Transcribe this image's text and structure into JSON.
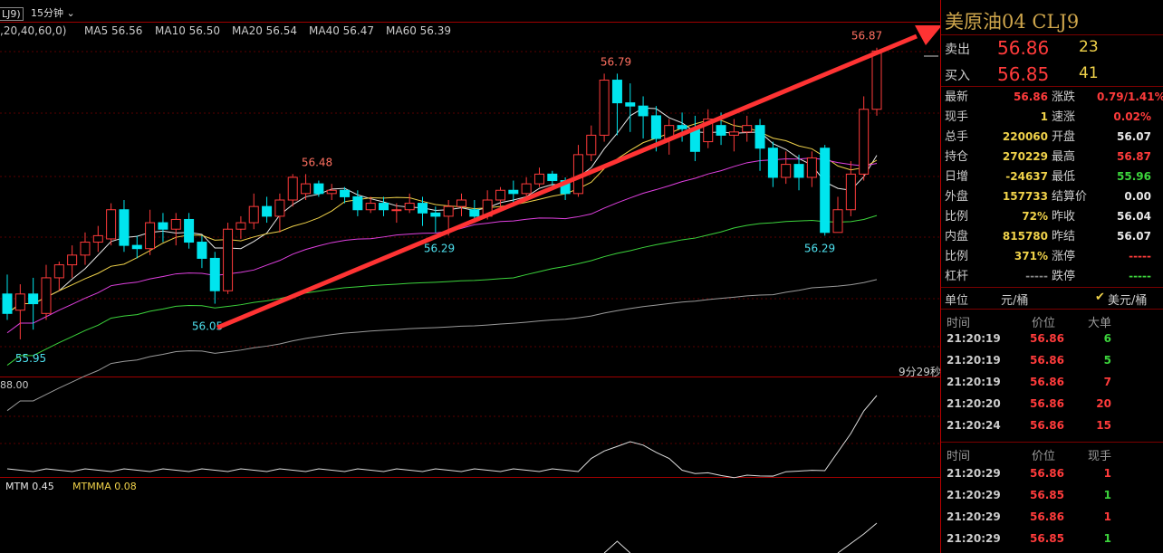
{
  "header": {
    "symbol_short": "LJ9)",
    "period": "15分钟",
    "ma_params": ",20,40,60,0)",
    "ma": [
      {
        "label": "MA5 56.56",
        "color": "#e8e8e8"
      },
      {
        "label": "MA10 56.50",
        "color": "#f0d24a"
      },
      {
        "label": "MA20 56.54",
        "color": "#e040e0"
      },
      {
        "label": "MA40 56.47",
        "color": "#3cd43c"
      },
      {
        "label": "MA60 56.39",
        "color": "#9a9a9a"
      }
    ]
  },
  "annotations": {
    "countdown": "9分29秒",
    "osc_top": "88.00",
    "mtm_label": "MTM 0.45",
    "mtmma_label": "MTMMA 0.08"
  },
  "chart_data": {
    "type": "candlestick",
    "ylim": [
      55.9,
      56.9
    ],
    "price_labels": [
      {
        "text": "56.87",
        "value": 56.87
      },
      {
        "text": "56.79",
        "value": 56.79
      },
      {
        "text": "56.48",
        "value": 56.48
      },
      {
        "text": "56.29",
        "value": 56.29
      },
      {
        "text": "56.05",
        "value": 56.05
      },
      {
        "text": "55.95",
        "value": 55.95
      },
      {
        "text": "56.29",
        "value": 56.29
      }
    ],
    "candles": [
      [
        56.11,
        56.05,
        56.17,
        56.03
      ],
      [
        56.06,
        56.11,
        56.14,
        55.97
      ],
      [
        56.11,
        56.08,
        56.16,
        56.0
      ],
      [
        56.05,
        56.16,
        56.2,
        56.03
      ],
      [
        56.16,
        56.2,
        56.21,
        56.12
      ],
      [
        56.2,
        56.23,
        56.26,
        56.16
      ],
      [
        56.23,
        56.27,
        56.3,
        56.2
      ],
      [
        56.27,
        56.29,
        56.32,
        56.24
      ],
      [
        56.28,
        56.37,
        56.39,
        56.26
      ],
      [
        56.37,
        56.26,
        56.4,
        56.24
      ],
      [
        56.26,
        56.25,
        56.29,
        56.22
      ],
      [
        56.25,
        56.33,
        56.37,
        56.23
      ],
      [
        56.33,
        56.31,
        56.36,
        56.27
      ],
      [
        56.31,
        56.34,
        56.36,
        56.26
      ],
      [
        56.34,
        56.27,
        56.36,
        56.25
      ],
      [
        56.27,
        56.22,
        56.29,
        56.19
      ],
      [
        56.22,
        56.12,
        56.24,
        56.08
      ],
      [
        56.12,
        56.31,
        56.33,
        56.11
      ],
      [
        56.31,
        56.33,
        56.35,
        56.28
      ],
      [
        56.33,
        56.38,
        56.42,
        56.31
      ],
      [
        56.38,
        56.35,
        56.41,
        56.33
      ],
      [
        56.35,
        56.4,
        56.42,
        56.3
      ],
      [
        56.4,
        56.47,
        56.48,
        56.38
      ],
      [
        56.42,
        56.45,
        56.48,
        56.4
      ],
      [
        56.45,
        56.42,
        56.46,
        56.41
      ],
      [
        56.42,
        56.43,
        56.45,
        56.4
      ],
      [
        56.43,
        56.41,
        56.44,
        56.39
      ],
      [
        56.41,
        56.37,
        56.43,
        56.35
      ],
      [
        56.37,
        56.39,
        56.41,
        56.36
      ],
      [
        56.39,
        56.37,
        56.41,
        56.35
      ],
      [
        56.37,
        56.37,
        56.39,
        56.33
      ],
      [
        56.37,
        56.39,
        56.42,
        56.36
      ],
      [
        56.39,
        56.36,
        56.41,
        56.32
      ],
      [
        56.36,
        56.35,
        56.38,
        56.3
      ],
      [
        56.35,
        56.38,
        56.4,
        56.29
      ],
      [
        56.38,
        56.4,
        56.42,
        56.35
      ],
      [
        56.37,
        56.35,
        56.4,
        56.33
      ],
      [
        56.35,
        56.4,
        56.43,
        56.34
      ],
      [
        56.4,
        56.43,
        56.44,
        56.37
      ],
      [
        56.43,
        56.42,
        56.46,
        56.38
      ],
      [
        56.42,
        56.45,
        56.47,
        56.4
      ],
      [
        56.45,
        56.48,
        56.5,
        56.44
      ],
      [
        56.48,
        56.46,
        56.49,
        56.43
      ],
      [
        56.46,
        56.42,
        56.47,
        56.4
      ],
      [
        56.42,
        56.54,
        56.57,
        56.41
      ],
      [
        56.54,
        56.6,
        56.63,
        56.52
      ],
      [
        56.6,
        56.77,
        56.79,
        56.58
      ],
      [
        56.77,
        56.7,
        56.79,
        56.6
      ],
      [
        56.7,
        56.69,
        56.76,
        56.61
      ],
      [
        56.69,
        56.66,
        56.72,
        56.59
      ],
      [
        56.66,
        56.59,
        56.69,
        56.55
      ],
      [
        56.59,
        56.63,
        56.65,
        56.54
      ],
      [
        56.63,
        56.62,
        56.67,
        56.58
      ],
      [
        56.62,
        56.55,
        56.66,
        56.52
      ],
      [
        56.58,
        56.65,
        56.68,
        56.56
      ],
      [
        56.63,
        56.6,
        56.67,
        56.57
      ],
      [
        56.6,
        56.61,
        56.65,
        56.55
      ],
      [
        56.61,
        56.63,
        56.66,
        56.58
      ],
      [
        56.63,
        56.56,
        56.65,
        56.49
      ],
      [
        56.56,
        56.47,
        56.58,
        56.44
      ],
      [
        56.47,
        56.51,
        56.55,
        56.45
      ],
      [
        56.51,
        56.47,
        56.54,
        56.43
      ],
      [
        56.47,
        56.53,
        56.55,
        56.44
      ],
      [
        56.56,
        56.3,
        56.57,
        56.29
      ],
      [
        56.3,
        56.37,
        56.41,
        56.31
      ],
      [
        56.37,
        56.48,
        56.52,
        56.35
      ],
      [
        56.48,
        56.68,
        56.72,
        56.46
      ],
      [
        56.68,
        56.86,
        56.87,
        56.66
      ]
    ],
    "mtm_pattern": "oscillating"
  },
  "right_panel": {
    "title": "美原油04 CLJ9",
    "sell_label": "卖出",
    "sell_price": "56.86",
    "sell_vol": "23",
    "buy_label": "买入",
    "buy_price": "56.85",
    "buy_vol": "41",
    "stats": [
      {
        "l1": "最新",
        "v1": "56.86",
        "c1": "#ff3b3b",
        "l2": "涨跌",
        "v2": "0.79/1.41%",
        "c2": "#ff3b3b"
      },
      {
        "l1": "现手",
        "v1": "1",
        "c1": "#f0d24a",
        "l2": "速涨",
        "v2": "0.02%",
        "c2": "#ff3b3b"
      },
      {
        "l1": "总手",
        "v1": "220060",
        "c1": "#f0d24a",
        "l2": "开盘",
        "v2": "56.07",
        "c2": "#e8e8e8"
      },
      {
        "l1": "持仓",
        "v1": "270229",
        "c1": "#f0d24a",
        "l2": "最高",
        "v2": "56.87",
        "c2": "#ff3b3b"
      },
      {
        "l1": "日增",
        "v1": "-24637",
        "c1": "#f0d24a",
        "l2": "最低",
        "v2": "55.96",
        "c2": "#3cd43c"
      },
      {
        "l1": "外盘",
        "v1": "157733",
        "c1": "#f0d24a",
        "l2": "结算价",
        "v2": "0.00",
        "c2": "#e8e8e8"
      },
      {
        "l1": "比例",
        "v1": "72%",
        "c1": "#f0d24a",
        "l2": "昨收",
        "v2": "56.04",
        "c2": "#e8e8e8"
      },
      {
        "l1": "内盘",
        "v1": "815780",
        "c1": "#f0d24a",
        "l2": "昨结",
        "v2": "56.07",
        "c2": "#e8e8e8"
      },
      {
        "l1": "比例",
        "v1": "371%",
        "c1": "#f0d24a",
        "l2": "涨停",
        "v2": "-----",
        "c2": "#ff3b3b"
      },
      {
        "l1": "杠杆",
        "v1": "-----",
        "c1": "#888888",
        "l2": "跌停",
        "v2": "-----",
        "c2": "#3cd43c"
      }
    ],
    "unit_label": "单位",
    "unit_cny": "元/桶",
    "unit_usd_check": "✔",
    "unit_usd": "美元/桶",
    "table1_headers": [
      "时间",
      "价位",
      "大单"
    ],
    "table1": [
      {
        "time": "21:20:19",
        "price": "56.86",
        "vol": "6",
        "color": "#3cd43c"
      },
      {
        "time": "21:20:19",
        "price": "56.86",
        "vol": "5",
        "color": "#3cd43c"
      },
      {
        "time": "21:20:19",
        "price": "56.86",
        "vol": "7",
        "color": "#ff3b3b"
      },
      {
        "time": "21:20:20",
        "price": "56.86",
        "vol": "20",
        "color": "#ff3b3b"
      },
      {
        "time": "21:20:24",
        "price": "56.86",
        "vol": "15",
        "color": "#ff3b3b"
      }
    ],
    "table2_headers": [
      "时间",
      "价位",
      "现手"
    ],
    "table2": [
      {
        "time": "21:20:29",
        "price": "56.86",
        "vol": "1",
        "color": "#ff3b3b"
      },
      {
        "time": "21:20:29",
        "price": "56.85",
        "vol": "1",
        "color": "#3cd43c"
      },
      {
        "time": "21:20:29",
        "price": "56.86",
        "vol": "1",
        "color": "#ff3b3b"
      },
      {
        "time": "21:20:29",
        "price": "56.85",
        "vol": "1",
        "color": "#3cd43c"
      }
    ]
  }
}
